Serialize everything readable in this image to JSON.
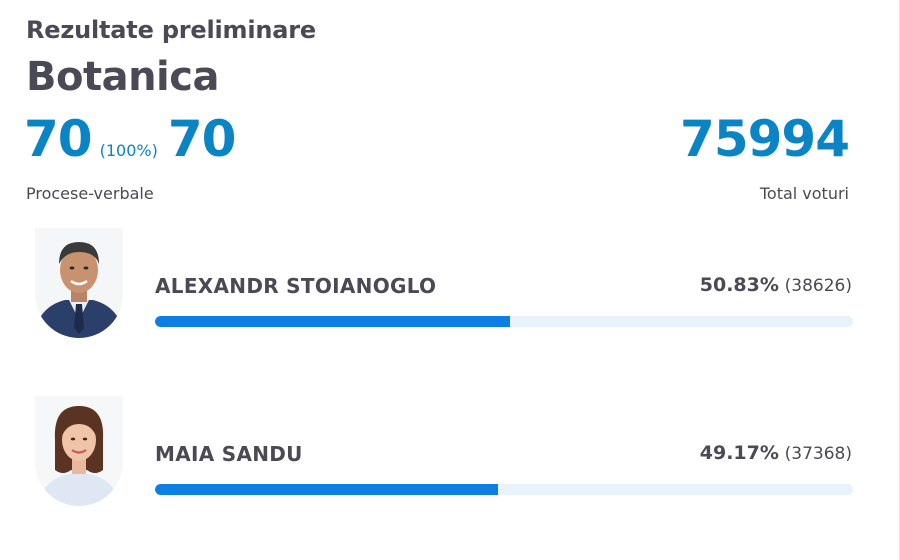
{
  "header": {
    "subtitle": "Rezultate preliminare",
    "title": "Botanica"
  },
  "stats": {
    "processed": "70",
    "processed_pct": "(100%)",
    "total_reports": "70",
    "reports_label": "Procese-verbale",
    "total_votes": "75994",
    "votes_label": "Total voturi"
  },
  "candidates": [
    {
      "name": "ALEXANDR STOIANOGLO",
      "percent_text": "50.83%",
      "votes_text": "(38626)",
      "share": 0.5083
    },
    {
      "name": "MAIA SANDU",
      "percent_text": "49.17%",
      "votes_text": "(37368)",
      "share": 0.4917
    }
  ],
  "colors": {
    "accent": "#0b84c6",
    "bar": "#0d7fe3",
    "bar_track": "#e8f2fb",
    "text": "#4a4a56"
  }
}
